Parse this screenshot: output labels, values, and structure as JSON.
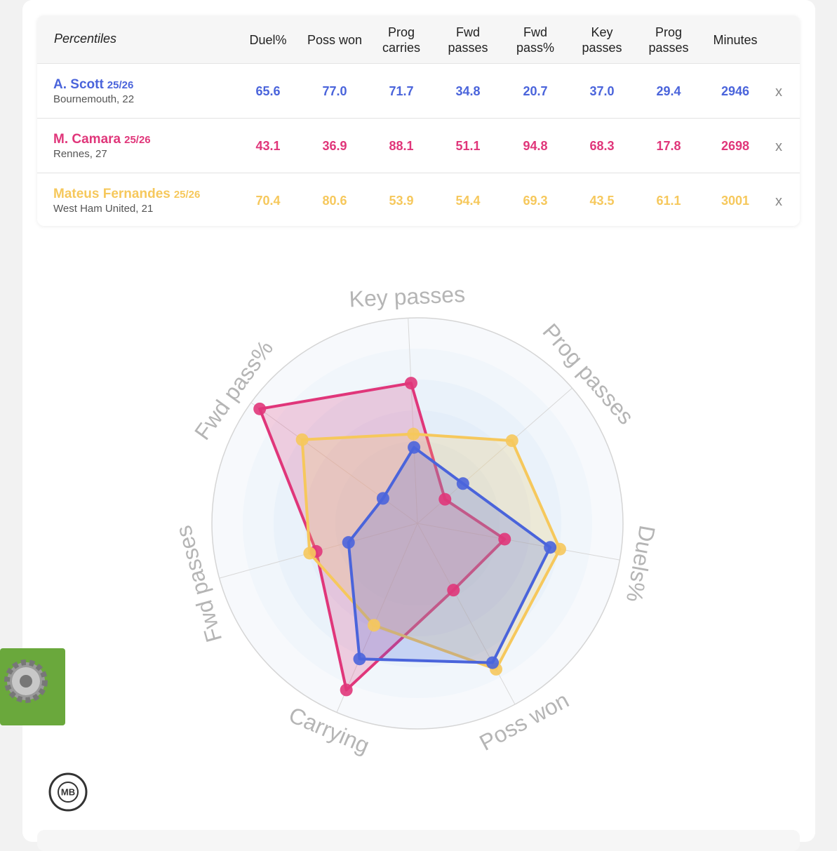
{
  "table": {
    "corner": "Percentiles",
    "columns": [
      "Duel%",
      "Poss won",
      "Prog carries",
      "Fwd passes",
      "Fwd pass%",
      "Key passes",
      "Prog passes",
      "Minutes"
    ],
    "rows": [
      {
        "name": "A. Scott",
        "season": "25/26",
        "club": "Bournemouth, 22",
        "cells": [
          "65.6",
          "77.0",
          "71.7",
          "34.8",
          "20.7",
          "37.0",
          "29.4",
          "2946"
        ],
        "remove": "x"
      },
      {
        "name": "M. Camara",
        "season": "25/26",
        "club": "Rennes, 27",
        "cells": [
          "43.1",
          "36.9",
          "88.1",
          "51.1",
          "94.8",
          "68.3",
          "17.8",
          "2698"
        ],
        "remove": "x"
      },
      {
        "name": "Mateus Fernandes",
        "season": "25/26",
        "club": "West Ham United, 21",
        "cells": [
          "70.4",
          "80.6",
          "53.9",
          "54.4",
          "69.3",
          "43.5",
          "61.1",
          "3001"
        ],
        "remove": "x"
      }
    ]
  },
  "chart_data": {
    "type": "radar",
    "axes": [
      "Key passes",
      "Prog passes",
      "Duels%",
      "Poss won",
      "Carrying",
      "Fwd passes",
      "Fwd pass%"
    ],
    "rlim": [
      0,
      100
    ],
    "series": [
      {
        "color": "#4a64db",
        "values": [
          37.0,
          29.4,
          65.6,
          77.0,
          71.7,
          34.8,
          20.7
        ]
      },
      {
        "color": "#e0367a",
        "values": [
          68.3,
          17.8,
          43.1,
          36.9,
          88.1,
          51.1,
          94.8
        ]
      },
      {
        "color": "#f6c85c",
        "values": [
          43.5,
          61.1,
          70.4,
          80.6,
          53.9,
          54.4,
          69.3
        ]
      }
    ]
  },
  "logo": "MB"
}
